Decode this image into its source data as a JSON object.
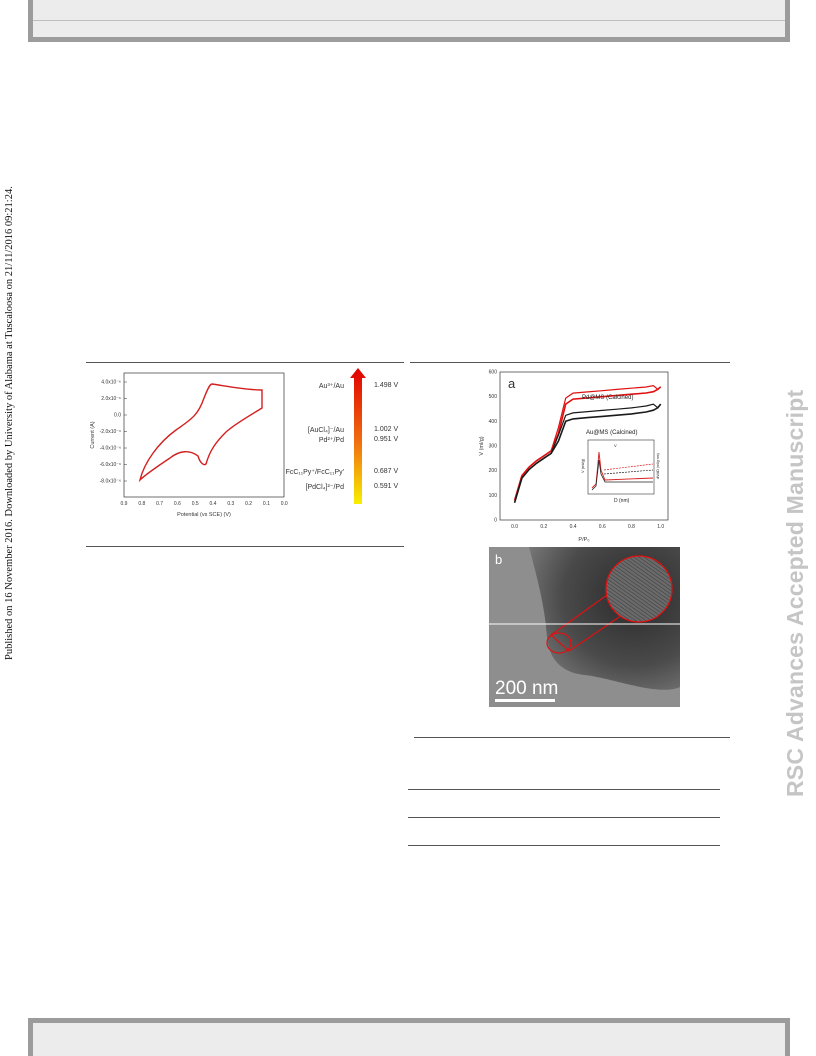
{
  "header": {},
  "side_note": "Published on 16 November 2016. Downloaded by University of Alabama at Tuscaloosa on 21/11/2016 09:21:24.",
  "watermark": "RSC Advances Accepted Manuscript",
  "figure_cv": {
    "y_axis_label": "Current (A)",
    "x_axis_label": "Potential (vs SCE) (V)",
    "y_ticks": [
      "4.0x10⁻⁶",
      "2.0x10⁻⁶",
      "0.0",
      "-2.0x10⁻⁶",
      "-4.0x10⁻⁶",
      "-6.0x10⁻⁶",
      "-8.0x10⁻⁶"
    ],
    "x_ticks": [
      "0.9",
      "0.8",
      "0.7",
      "0.6",
      "0.5",
      "0.4",
      "0.3",
      "0.2",
      "0.1",
      "0.0"
    ],
    "potentials": [
      {
        "couple": "Au³⁺/Au",
        "value": "1.498 V"
      },
      {
        "couple": "[AuCl₄]⁻/Au",
        "value": "1.002 V"
      },
      {
        "couple": "Pd²⁺/Pd",
        "value": "0.951 V"
      },
      {
        "couple": "FcC₁₁Py⁺/FcC₁₁Py'",
        "value": "0.687 V"
      },
      {
        "couple": "[PdCl₄]²⁻/Pd",
        "value": "0.591 V"
      }
    ],
    "colors": {
      "curve": "#d42020",
      "arrow_top": "#e00000",
      "arrow_bottom": "#f8f000"
    }
  },
  "chart_data": {
    "type": "line",
    "title": "",
    "panel_label": "a",
    "xlabel": "P/P₀",
    "ylabel": "V (ml/g)",
    "x_ticks": [
      "0.0",
      "0.2",
      "0.4",
      "0.6",
      "0.8",
      "1.0"
    ],
    "y_ticks": [
      "0",
      "100",
      "200",
      "300",
      "400",
      "500",
      "600"
    ],
    "xlim": [
      -0.1,
      1.05
    ],
    "ylim": [
      0,
      600
    ],
    "series": [
      {
        "name": "Pd@MS (Calcined)",
        "color": "#e01010",
        "x": [
          0.0,
          0.05,
          0.1,
          0.15,
          0.2,
          0.25,
          0.3,
          0.35,
          0.4,
          0.5,
          0.6,
          0.7,
          0.8,
          0.9,
          0.95,
          0.98,
          1.0
        ],
        "values": [
          80,
          180,
          215,
          240,
          260,
          280,
          350,
          470,
          490,
          495,
          500,
          505,
          510,
          515,
          520,
          530,
          540
        ]
      },
      {
        "name": "Au@MS (Calcined)",
        "color": "#1a1a1a",
        "x": [
          0.0,
          0.05,
          0.1,
          0.15,
          0.2,
          0.25,
          0.3,
          0.35,
          0.4,
          0.5,
          0.6,
          0.7,
          0.8,
          0.9,
          0.95,
          0.98,
          1.0
        ],
        "values": [
          70,
          170,
          205,
          230,
          250,
          270,
          320,
          400,
          410,
          415,
          420,
          425,
          430,
          438,
          445,
          455,
          470
        ]
      }
    ],
    "inset": {
      "xlabel": "D (nm)",
      "ylabel": "V (ml/g)",
      "y2label": "dV/dD (ml/g·nm)",
      "legend": "V"
    }
  },
  "figure_tem": {
    "panel_label": "b",
    "scale_bar": "200 nm"
  }
}
